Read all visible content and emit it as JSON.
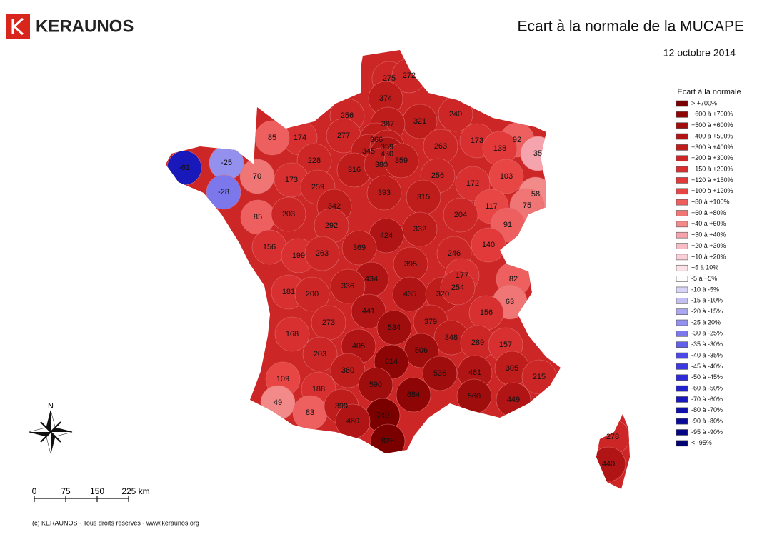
{
  "header": {
    "logo": "KERAUNOS",
    "title": "Ecart à la normale de la MUCAPE",
    "date": "12 octobre 2014"
  },
  "legend": {
    "title": "Ecart à la normale",
    "items": [
      {
        "label": "> +700%",
        "color": "#7a0000"
      },
      {
        "label": "+600 à +700%",
        "color": "#8e0505"
      },
      {
        "label": "+500 à +600%",
        "color": "#a00d0d"
      },
      {
        "label": "+400 à +500%",
        "color": "#b01414"
      },
      {
        "label": "+300 à +400%",
        "color": "#bf1c1c"
      },
      {
        "label": "+200 à +300%",
        "color": "#cc2626"
      },
      {
        "label": "+150 à +200%",
        "color": "#d83030"
      },
      {
        "label": "+120 à +150%",
        "color": "#e23a3a"
      },
      {
        "label": "+100 à +120%",
        "color": "#e84545"
      },
      {
        "label": "+80 à +100%",
        "color": "#ee5f5f"
      },
      {
        "label": "+60 à +80%",
        "color": "#f07575"
      },
      {
        "label": "+40 à +60%",
        "color": "#f28a8a"
      },
      {
        "label": "+30 à +40%",
        "color": "#f5a3ac"
      },
      {
        "label": "+20 à +30%",
        "color": "#f8bcc6"
      },
      {
        "label": "+10 à +20%",
        "color": "#fad0d8"
      },
      {
        "label": "+5 à 10%",
        "color": "#fce3ea"
      },
      {
        "label": "-5 à +5%",
        "color": "#ffffff"
      },
      {
        "label": "-10 à -5%",
        "color": "#d8d4f5"
      },
      {
        "label": "-15 à -10%",
        "color": "#c4bff2"
      },
      {
        "label": "-20 à -15%",
        "color": "#aaa6f0"
      },
      {
        "label": "-25 à 20%",
        "color": "#9490ee"
      },
      {
        "label": "-30 à -25%",
        "color": "#7c78ec"
      },
      {
        "label": "-35 à -30%",
        "color": "#6460ea"
      },
      {
        "label": "-40 à -35%",
        "color": "#4c48e6"
      },
      {
        "label": "-45 à -40%",
        "color": "#3c38e0"
      },
      {
        "label": "-50 à -45%",
        "color": "#2e2ad8"
      },
      {
        "label": "-60 à -50%",
        "color": "#2020cc"
      },
      {
        "label": "-70 à -60%",
        "color": "#1818bb"
      },
      {
        "label": "-80 à -70%",
        "color": "#1010a8"
      },
      {
        "label": "-90 à -80%",
        "color": "#0a0a96"
      },
      {
        "label": "-95 à -90%",
        "color": "#060684"
      },
      {
        "label": "< -95%",
        "color": "#020270"
      }
    ]
  },
  "map": {
    "departments": [
      {
        "value": 275,
        "color": "#cc2626"
      },
      {
        "value": 272,
        "color": "#cc2626"
      },
      {
        "value": 374,
        "color": "#bf1c1c"
      },
      {
        "value": 256,
        "color": "#cc2626"
      },
      {
        "value": 321,
        "color": "#bf1c1c"
      },
      {
        "value": 240,
        "color": "#cc2626"
      },
      {
        "value": 387,
        "color": "#bf1c1c"
      },
      {
        "value": 174,
        "color": "#d83030"
      },
      {
        "value": 277,
        "color": "#cc2626"
      },
      {
        "value": 366,
        "color": "#bf1c1c"
      },
      {
        "value": 173,
        "color": "#d83030"
      },
      {
        "value": 92,
        "color": "#ee5f5f"
      },
      {
        "value": 85,
        "color": "#ee5f5f"
      },
      {
        "value": 263,
        "color": "#cc2626"
      },
      {
        "value": 138,
        "color": "#e23a3a"
      },
      {
        "value": 35,
        "color": "#f5a3ac"
      },
      {
        "value": 345,
        "color": "#bf1c1c"
      },
      {
        "value": 359,
        "color": "#bf1c1c"
      },
      {
        "value": 430,
        "color": "#b01414"
      },
      {
        "value": 228,
        "color": "#cc2626"
      },
      {
        "value": 316,
        "color": "#bf1c1c"
      },
      {
        "value": 380,
        "color": "#bf1c1c"
      },
      {
        "value": 359,
        "color": "#bf1c1c"
      },
      {
        "value": 70,
        "color": "#f07575"
      },
      {
        "value": 173,
        "color": "#d83030"
      },
      {
        "value": 256,
        "color": "#cc2626"
      },
      {
        "value": 103,
        "color": "#e84545"
      },
      {
        "value": 172,
        "color": "#d83030"
      },
      {
        "value": 259,
        "color": "#cc2626"
      },
      {
        "value": 393,
        "color": "#bf1c1c"
      },
      {
        "value": 315,
        "color": "#bf1c1c"
      },
      {
        "value": 58,
        "color": "#f28a8a"
      },
      {
        "value": 117,
        "color": "#e84545"
      },
      {
        "value": 75,
        "color": "#f07575"
      },
      {
        "value": 204,
        "color": "#cc2626"
      },
      {
        "value": 85,
        "color": "#ee5f5f"
      },
      {
        "value": 203,
        "color": "#cc2626"
      },
      {
        "value": 342,
        "color": "#bf1c1c"
      },
      {
        "value": 292,
        "color": "#cc2626"
      },
      {
        "value": 424,
        "color": "#b01414"
      },
      {
        "value": 332,
        "color": "#bf1c1c"
      },
      {
        "value": 91,
        "color": "#ee5f5f"
      },
      {
        "value": 140,
        "color": "#e23a3a"
      },
      {
        "value": 156,
        "color": "#d83030"
      },
      {
        "value": 199,
        "color": "#d83030"
      },
      {
        "value": 263,
        "color": "#cc2626"
      },
      {
        "value": 369,
        "color": "#bf1c1c"
      },
      {
        "value": 246,
        "color": "#cc2626"
      },
      {
        "value": 395,
        "color": "#bf1c1c"
      },
      {
        "value": 177,
        "color": "#d83030"
      },
      {
        "value": 82,
        "color": "#ee5f5f"
      },
      {
        "value": 434,
        "color": "#b01414"
      },
      {
        "value": 336,
        "color": "#bf1c1c"
      },
      {
        "value": 181,
        "color": "#d83030"
      },
      {
        "value": 200,
        "color": "#cc2626"
      },
      {
        "value": 435,
        "color": "#b01414"
      },
      {
        "value": 320,
        "color": "#bf1c1c"
      },
      {
        "value": 254,
        "color": "#cc2626"
      },
      {
        "value": 63,
        "color": "#f07575"
      },
      {
        "value": 441,
        "color": "#b01414"
      },
      {
        "value": 379,
        "color": "#bf1c1c"
      },
      {
        "value": 156,
        "color": "#d83030"
      },
      {
        "value": 273,
        "color": "#cc2626"
      },
      {
        "value": 534,
        "color": "#a00d0d"
      },
      {
        "value": 168,
        "color": "#d83030"
      },
      {
        "value": 348,
        "color": "#bf1c1c"
      },
      {
        "value": 289,
        "color": "#cc2626"
      },
      {
        "value": 157,
        "color": "#d83030"
      },
      {
        "value": 405,
        "color": "#b01414"
      },
      {
        "value": 506,
        "color": "#a00d0d"
      },
      {
        "value": 203,
        "color": "#cc2626"
      },
      {
        "value": 614,
        "color": "#8e0505"
      },
      {
        "value": 305,
        "color": "#bf1c1c"
      },
      {
        "value": 215,
        "color": "#cc2626"
      },
      {
        "value": 360,
        "color": "#bf1c1c"
      },
      {
        "value": 536,
        "color": "#a00d0d"
      },
      {
        "value": 461,
        "color": "#b01414"
      },
      {
        "value": 109,
        "color": "#e84545"
      },
      {
        "value": 590,
        "color": "#a00d0d"
      },
      {
        "value": 188,
        "color": "#d83030"
      },
      {
        "value": 684,
        "color": "#8e0505"
      },
      {
        "value": 560,
        "color": "#a00d0d"
      },
      {
        "value": 449,
        "color": "#b01414"
      },
      {
        "value": 49,
        "color": "#f28a8a"
      },
      {
        "value": 83,
        "color": "#ee5f5f"
      },
      {
        "value": 399,
        "color": "#bf1c1c"
      },
      {
        "value": 740,
        "color": "#7a0000"
      },
      {
        "value": 480,
        "color": "#b01414"
      },
      {
        "value": 826,
        "color": "#7a0000"
      },
      {
        "value": 278,
        "color": "#cc2626"
      },
      {
        "value": 440,
        "color": "#b01414"
      },
      {
        "value": -61,
        "color": "#1818bb"
      },
      {
        "value": -25,
        "color": "#9490ee"
      },
      {
        "value": -28,
        "color": "#7c78ec"
      }
    ]
  },
  "compass": "N",
  "scale": [
    "0",
    "75",
    "150",
    "225 km"
  ],
  "footer": "(c) KERAUNOS - Tous droits réservés - www.keraunos.org"
}
